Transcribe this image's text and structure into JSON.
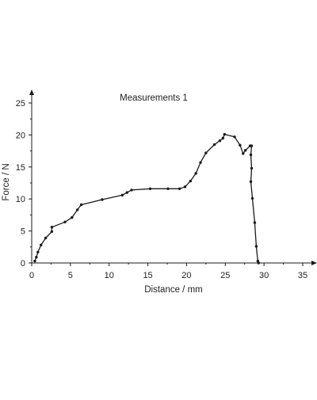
{
  "chart_data": {
    "type": "line",
    "title": "Measurements 1",
    "xlabel": "Distance / mm",
    "ylabel": "Force / N",
    "xlim": [
      0,
      35
    ],
    "ylim": [
      0,
      25
    ],
    "x_ticks": [
      0,
      5,
      10,
      15,
      20,
      25,
      30,
      35
    ],
    "y_ticks": [
      0,
      5,
      10,
      15,
      20,
      25
    ],
    "grid": false,
    "legend": "none",
    "colors": {
      "line": "#1a1a1a",
      "marker": "#1a1a1a",
      "axis": "#1a1a1a"
    },
    "series": [
      {
        "x": [
          0.4,
          0.6,
          0.8,
          1.2,
          1.8,
          2.6,
          2.6,
          4.3,
          5.2,
          5.9,
          6.4,
          9.1,
          11.7,
          12.3,
          12.9,
          15.3,
          17.6,
          19.1,
          19.8,
          20.5,
          21.2,
          21.8,
          22.5,
          23.6,
          24.3,
          24.7,
          24.9,
          26.2,
          26.9,
          27.3,
          27.6,
          28.2,
          28.4,
          28.3,
          28.4,
          28.3,
          28.5,
          28.8,
          29.0,
          29.2,
          29.3
        ],
        "y": [
          0.3,
          0.9,
          1.7,
          2.8,
          3.9,
          4.9,
          5.6,
          6.4,
          7.1,
          8.3,
          9.1,
          9.9,
          10.6,
          11.0,
          11.4,
          11.6,
          11.6,
          11.6,
          11.9,
          12.8,
          14.0,
          15.7,
          17.2,
          18.5,
          19.1,
          19.5,
          20.1,
          19.7,
          18.4,
          17.1,
          17.6,
          18.3,
          18.3,
          16.9,
          14.8,
          12.7,
          10.1,
          6.3,
          2.6,
          0.3,
          0.0
        ]
      }
    ]
  }
}
